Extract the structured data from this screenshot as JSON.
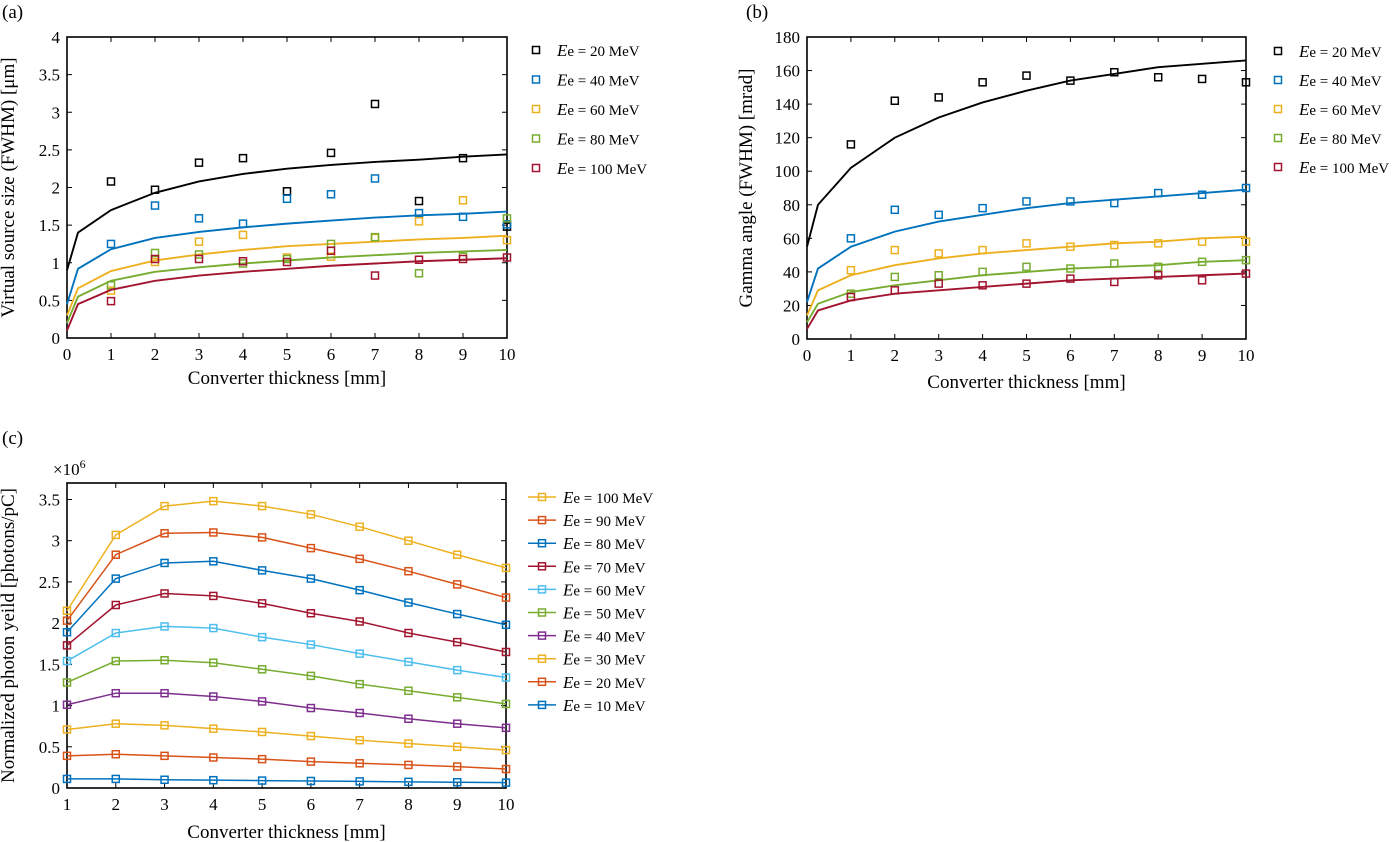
{
  "chart_data": [
    {
      "panel_label": "(a)",
      "type": "scatter",
      "xlabel": "Converter thickness [mm]",
      "ylabel": "Virtual source size (FWHM) [μm]",
      "xlim": [
        0,
        10
      ],
      "ylim": [
        0,
        4
      ],
      "xticks": [
        "0",
        "1",
        "2",
        "3",
        "4",
        "5",
        "6",
        "7",
        "8",
        "9",
        "10"
      ],
      "yticks": [
        "0",
        "0.5",
        "1",
        "1.5",
        "2",
        "2.5",
        "3",
        "3.5",
        "4"
      ],
      "legend_position": "outside-right",
      "marker": "open-square",
      "fit": "power-law curve",
      "x": [
        1,
        2,
        3,
        4,
        5,
        6,
        7,
        8,
        9,
        10
      ],
      "series": [
        {
          "legend_italic": "E",
          "legend_text": "e = 20 MeV",
          "color": "#000000",
          "values": [
            2.08,
            1.97,
            2.33,
            2.39,
            1.95,
            2.46,
            3.11,
            1.82,
            2.39,
            1.48
          ],
          "fit_points": [
            [
              0,
              0.9
            ],
            [
              0.25,
              1.4
            ],
            [
              1,
              1.7
            ],
            [
              2,
              1.93
            ],
            [
              3,
              2.08
            ],
            [
              4,
              2.18
            ],
            [
              5,
              2.25
            ],
            [
              6,
              2.3
            ],
            [
              7,
              2.34
            ],
            [
              8,
              2.37
            ],
            [
              9,
              2.41
            ],
            [
              10,
              2.44
            ]
          ]
        },
        {
          "legend_italic": "E",
          "legend_text": "e = 40 MeV",
          "color": "#0072BD",
          "values": [
            1.25,
            1.76,
            1.59,
            1.52,
            1.85,
            1.91,
            2.12,
            1.66,
            1.61,
            1.51
          ],
          "fit_points": [
            [
              0,
              0.45
            ],
            [
              0.25,
              0.92
            ],
            [
              1,
              1.18
            ],
            [
              2,
              1.33
            ],
            [
              3,
              1.41
            ],
            [
              4,
              1.47
            ],
            [
              5,
              1.52
            ],
            [
              6,
              1.56
            ],
            [
              7,
              1.6
            ],
            [
              8,
              1.63
            ],
            [
              9,
              1.65
            ],
            [
              10,
              1.68
            ]
          ]
        },
        {
          "legend_italic": "E",
          "legend_text": "e = 60 MeV",
          "color": "#EDB120",
          "values": [
            0.63,
            1.01,
            1.28,
            1.37,
            1.07,
            1.08,
            1.33,
            1.55,
            1.83,
            1.3
          ],
          "fit_points": [
            [
              0,
              0.3
            ],
            [
              0.25,
              0.66
            ],
            [
              1,
              0.89
            ],
            [
              2,
              1.03
            ],
            [
              3,
              1.11
            ],
            [
              4,
              1.17
            ],
            [
              5,
              1.22
            ],
            [
              6,
              1.25
            ],
            [
              7,
              1.28
            ],
            [
              8,
              1.31
            ],
            [
              9,
              1.33
            ],
            [
              10,
              1.36
            ]
          ]
        },
        {
          "legend_italic": "E",
          "legend_text": "e = 80 MeV",
          "color": "#77AC30",
          "values": [
            0.7,
            1.13,
            1.11,
            0.99,
            1.05,
            1.25,
            1.34,
            0.86,
            1.08,
            1.59
          ],
          "fit_points": [
            [
              0,
              0.2
            ],
            [
              0.25,
              0.55
            ],
            [
              1,
              0.76
            ],
            [
              2,
              0.88
            ],
            [
              3,
              0.94
            ],
            [
              4,
              0.99
            ],
            [
              5,
              1.03
            ],
            [
              6,
              1.07
            ],
            [
              7,
              1.1
            ],
            [
              8,
              1.13
            ],
            [
              9,
              1.15
            ],
            [
              10,
              1.17
            ]
          ]
        },
        {
          "legend_italic": "E",
          "legend_text": "e = 100 MeV",
          "color": "#A2142F",
          "values": [
            0.49,
            1.05,
            1.05,
            1.02,
            1.01,
            1.16,
            0.83,
            1.04,
            1.05,
            1.07
          ],
          "fit_points": [
            [
              0,
              0.1
            ],
            [
              0.25,
              0.45
            ],
            [
              1,
              0.64
            ],
            [
              2,
              0.76
            ],
            [
              3,
              0.83
            ],
            [
              4,
              0.88
            ],
            [
              5,
              0.92
            ],
            [
              6,
              0.96
            ],
            [
              7,
              0.99
            ],
            [
              8,
              1.02
            ],
            [
              9,
              1.04
            ],
            [
              10,
              1.06
            ]
          ]
        }
      ]
    },
    {
      "panel_label": "(b)",
      "type": "scatter",
      "xlabel": "Converter thickness [mm]",
      "ylabel": "Gamma angle (FWHM) [mrad]",
      "xlim": [
        0,
        10
      ],
      "ylim": [
        0,
        180
      ],
      "xticks": [
        "0",
        "1",
        "2",
        "3",
        "4",
        "5",
        "6",
        "7",
        "8",
        "9",
        "10"
      ],
      "yticks": [
        "0",
        "20",
        "40",
        "60",
        "80",
        "100",
        "120",
        "140",
        "160",
        "180"
      ],
      "legend_position": "outside-right",
      "marker": "open-square",
      "fit": "power-law curve",
      "x": [
        1,
        2,
        3,
        4,
        5,
        6,
        7,
        8,
        9,
        10
      ],
      "series": [
        {
          "legend_italic": "E",
          "legend_text": "e = 20 MeV",
          "color": "#000000",
          "values": [
            116,
            142,
            144,
            153,
            157,
            154,
            159,
            156,
            155,
            153
          ],
          "fit_points": [
            [
              0,
              55
            ],
            [
              0.25,
              80
            ],
            [
              1,
              102
            ],
            [
              2,
              120
            ],
            [
              3,
              132
            ],
            [
              4,
              141
            ],
            [
              5,
              148
            ],
            [
              6,
              154
            ],
            [
              7,
              158
            ],
            [
              8,
              162
            ],
            [
              9,
              164
            ],
            [
              10,
              166
            ]
          ]
        },
        {
          "legend_italic": "E",
          "legend_text": "e = 40 MeV",
          "color": "#0072BD",
          "values": [
            60,
            77,
            74,
            78,
            82,
            82,
            81,
            87,
            86,
            90
          ],
          "fit_points": [
            [
              0,
              22
            ],
            [
              0.25,
              42
            ],
            [
              1,
              55
            ],
            [
              2,
              64
            ],
            [
              3,
              70
            ],
            [
              4,
              74
            ],
            [
              5,
              78
            ],
            [
              6,
              81
            ],
            [
              7,
              83
            ],
            [
              8,
              85
            ],
            [
              9,
              87
            ],
            [
              10,
              89
            ]
          ]
        },
        {
          "legend_italic": "E",
          "legend_text": "e = 60 MeV",
          "color": "#EDB120",
          "values": [
            41,
            53,
            51,
            53,
            57,
            55,
            56,
            57,
            58,
            58
          ],
          "fit_points": [
            [
              0,
              14
            ],
            [
              0.25,
              29
            ],
            [
              1,
              38
            ],
            [
              2,
              44
            ],
            [
              3,
              48
            ],
            [
              4,
              51
            ],
            [
              5,
              53
            ],
            [
              6,
              55
            ],
            [
              7,
              57
            ],
            [
              8,
              58
            ],
            [
              9,
              60
            ],
            [
              10,
              61
            ]
          ]
        },
        {
          "legend_italic": "E",
          "legend_text": "e = 80 MeV",
          "color": "#77AC30",
          "values": [
            27,
            37,
            38,
            40,
            43,
            42,
            45,
            43,
            46,
            47
          ],
          "fit_points": [
            [
              0,
              10
            ],
            [
              0.25,
              21
            ],
            [
              1,
              28
            ],
            [
              2,
              32
            ],
            [
              3,
              35
            ],
            [
              4,
              38
            ],
            [
              5,
              40
            ],
            [
              6,
              42
            ],
            [
              7,
              43
            ],
            [
              8,
              44
            ],
            [
              9,
              46
            ],
            [
              10,
              47
            ]
          ]
        },
        {
          "legend_italic": "E",
          "legend_text": "e = 100 MeV",
          "color": "#A2142F",
          "values": [
            25,
            29,
            33,
            32,
            33,
            36,
            34,
            38,
            35,
            39
          ],
          "fit_points": [
            [
              0,
              6
            ],
            [
              0.25,
              17
            ],
            [
              1,
              23
            ],
            [
              2,
              27
            ],
            [
              3,
              29
            ],
            [
              4,
              31
            ],
            [
              5,
              33
            ],
            [
              6,
              35
            ],
            [
              7,
              36
            ],
            [
              8,
              37
            ],
            [
              9,
              38
            ],
            [
              10,
              39
            ]
          ]
        }
      ]
    },
    {
      "panel_label": "(c)",
      "type": "line",
      "xlabel": "Converter thickness [mm]",
      "ylabel": "Normalized photon yeild [photons/pC]",
      "y_multiplier_base": "×10",
      "y_multiplier_exp": "6",
      "xlim": [
        1,
        10
      ],
      "ylim": [
        0,
        3.7
      ],
      "xticks": [
        "1",
        "2",
        "3",
        "4",
        "5",
        "6",
        "7",
        "8",
        "9",
        "10"
      ],
      "yticks": [
        "0",
        "0.5",
        "1",
        "1.5",
        "2",
        "2.5",
        "3",
        "3.5"
      ],
      "legend_position": "outside-right",
      "marker": "open-square",
      "x": [
        1,
        2,
        3,
        4,
        5,
        6,
        7,
        8,
        9,
        10
      ],
      "series": [
        {
          "legend_italic": "E",
          "legend_text": "e = 100 MeV",
          "color": "#EDB120",
          "values": [
            2.15,
            3.07,
            3.42,
            3.48,
            3.42,
            3.32,
            3.17,
            3.0,
            2.83,
            2.67
          ]
        },
        {
          "legend_italic": "E",
          "legend_text": "e = 90 MeV",
          "color": "#D95319",
          "values": [
            2.03,
            2.83,
            3.09,
            3.1,
            3.04,
            2.91,
            2.78,
            2.63,
            2.47,
            2.31
          ]
        },
        {
          "legend_italic": "E",
          "legend_text": "e = 80 MeV",
          "color": "#0072BD",
          "values": [
            1.89,
            2.54,
            2.73,
            2.75,
            2.64,
            2.54,
            2.4,
            2.25,
            2.11,
            1.98
          ]
        },
        {
          "legend_italic": "E",
          "legend_text": "e = 70 MeV",
          "color": "#A2142F",
          "values": [
            1.73,
            2.22,
            2.36,
            2.33,
            2.24,
            2.12,
            2.02,
            1.88,
            1.77,
            1.65
          ]
        },
        {
          "legend_italic": "E",
          "legend_text": "e = 60 MeV",
          "color": "#4DBEEE",
          "values": [
            1.54,
            1.88,
            1.96,
            1.94,
            1.83,
            1.74,
            1.63,
            1.53,
            1.43,
            1.34
          ]
        },
        {
          "legend_italic": "E",
          "legend_text": "e = 50 MeV",
          "color": "#77AC30",
          "values": [
            1.28,
            1.54,
            1.55,
            1.52,
            1.44,
            1.36,
            1.26,
            1.18,
            1.1,
            1.02
          ]
        },
        {
          "legend_italic": "E",
          "legend_text": "e = 40 MeV",
          "color": "#7E2F8E",
          "values": [
            1.01,
            1.15,
            1.15,
            1.11,
            1.05,
            0.97,
            0.91,
            0.84,
            0.78,
            0.73
          ]
        },
        {
          "legend_italic": "E",
          "legend_text": "e = 30 MeV",
          "color": "#EDB120",
          "values": [
            0.71,
            0.78,
            0.76,
            0.72,
            0.68,
            0.63,
            0.58,
            0.54,
            0.5,
            0.46
          ]
        },
        {
          "legend_italic": "E",
          "legend_text": "e = 20 MeV",
          "color": "#D95319",
          "values": [
            0.39,
            0.41,
            0.39,
            0.37,
            0.35,
            0.32,
            0.3,
            0.28,
            0.26,
            0.23
          ]
        },
        {
          "legend_italic": "E",
          "legend_text": "e = 10 MeV",
          "color": "#0072BD",
          "values": [
            0.11,
            0.11,
            0.1,
            0.095,
            0.09,
            0.085,
            0.08,
            0.075,
            0.07,
            0.065
          ]
        }
      ]
    }
  ]
}
